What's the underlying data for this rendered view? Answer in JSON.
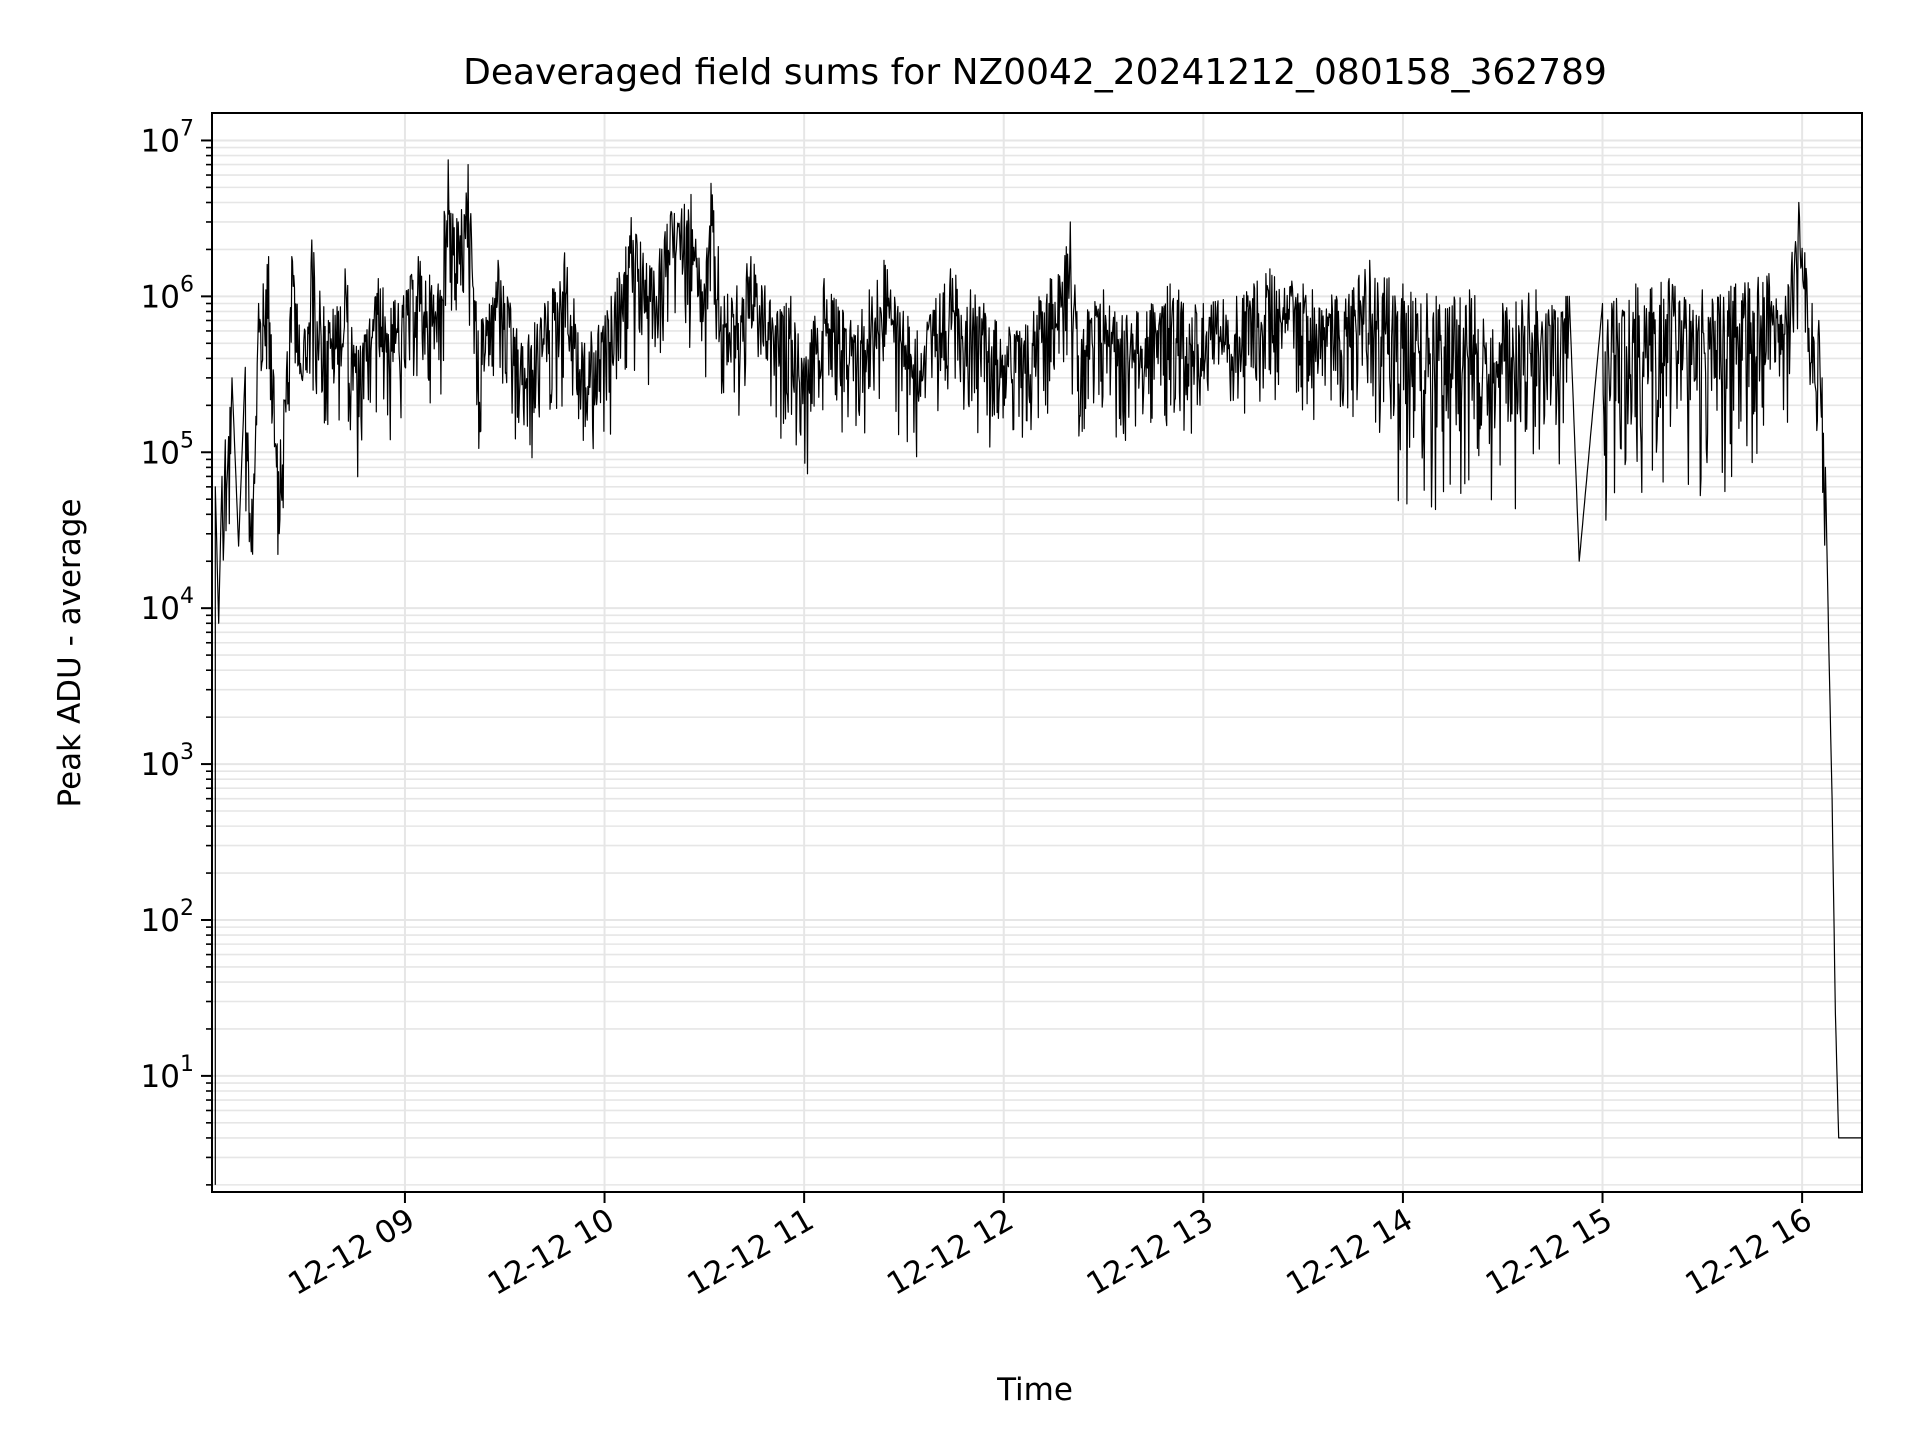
{
  "chart_data": {
    "type": "line",
    "title": "Deaveraged field sums for NZ0042_20241212_080158_362789",
    "xlabel": "Time",
    "ylabel": "Peak ADU - average",
    "yscale": "log",
    "ylim": [
      1.8,
      15000000
    ],
    "xlim": [
      "2024-12-12 08:02",
      "2024-12-12 16:18"
    ],
    "grid": true,
    "line_color": "#000000",
    "grid_color": "#e6e6e6",
    "x_ticks": [
      "12-12 09",
      "12-12 10",
      "12-12 11",
      "12-12 12",
      "12-12 13",
      "12-12 14",
      "12-12 15",
      "12-12 16"
    ],
    "y_ticks": [
      {
        "value": 10,
        "base": "10",
        "exp": "1"
      },
      {
        "value": 100,
        "base": "10",
        "exp": "2"
      },
      {
        "value": 1000,
        "base": "10",
        "exp": "3"
      },
      {
        "value": 10000,
        "base": "10",
        "exp": "4"
      },
      {
        "value": 100000,
        "base": "10",
        "exp": "5"
      },
      {
        "value": 1000000,
        "base": "10",
        "exp": "6"
      },
      {
        "value": 10000000,
        "base": "10",
        "exp": "7"
      }
    ],
    "series": [
      {
        "x": [
          "2024-12-12 08:03",
          "2024-12-12 08:03",
          "2024-12-12 08:04",
          "2024-12-12 08:05",
          "2024-12-12 08:06",
          "2024-12-12 08:08",
          "2024-12-12 08:10",
          "2024-12-12 08:12",
          "2024-12-12 08:14",
          "2024-12-12 08:16",
          "2024-12-12 08:19",
          "2024-12-12 08:22",
          "2024-12-12 08:26",
          "2024-12-12 08:30",
          "2024-12-12 08:32",
          "2024-12-12 08:37",
          "2024-12-12 08:42",
          "2024-12-12 08:46",
          "2024-12-12 08:52",
          "2024-12-12 08:58",
          "2024-12-12 09:04",
          "2024-12-12 09:10",
          "2024-12-12 09:13",
          "2024-12-12 09:16",
          "2024-12-12 09:19",
          "2024-12-12 09:22",
          "2024-12-12 09:28",
          "2024-12-12 09:35",
          "2024-12-12 09:42",
          "2024-12-12 09:48",
          "2024-12-12 09:54",
          "2024-12-12 10:02",
          "2024-12-12 10:08",
          "2024-12-12 10:14",
          "2024-12-12 10:20",
          "2024-12-12 10:26",
          "2024-12-12 10:30",
          "2024-12-12 10:32",
          "2024-12-12 10:36",
          "2024-12-12 10:44",
          "2024-12-12 10:52",
          "2024-12-12 10:56",
          "2024-12-12 11:00",
          "2024-12-12 11:06",
          "2024-12-12 11:14",
          "2024-12-12 11:24",
          "2024-12-12 11:34",
          "2024-12-12 11:44",
          "2024-12-12 11:54",
          "2024-12-12 12:04",
          "2024-12-12 12:14",
          "2024-12-12 12:20",
          "2024-12-12 12:22",
          "2024-12-12 12:30",
          "2024-12-12 12:40",
          "2024-12-12 12:50",
          "2024-12-12 13:00",
          "2024-12-12 13:10",
          "2024-12-12 13:20",
          "2024-12-12 13:30",
          "2024-12-12 13:40",
          "2024-12-12 13:50",
          "2024-12-12 14:00",
          "2024-12-12 14:10",
          "2024-12-12 14:20",
          "2024-12-12 14:30",
          "2024-12-12 14:40",
          "2024-12-12 14:50",
          "2024-12-12 14:53",
          "2024-12-12 15:00",
          "2024-12-12 15:10",
          "2024-12-12 15:20",
          "2024-12-12 15:30",
          "2024-12-12 15:40",
          "2024-12-12 15:50",
          "2024-12-12 15:55",
          "2024-12-12 15:59",
          "2024-12-12 16:03",
          "2024-12-12 16:05",
          "2024-12-12 16:06",
          "2024-12-12 16:07",
          "2024-12-12 16:08",
          "2024-12-12 16:09",
          "2024-12-12 16:10",
          "2024-12-12 16:11",
          "2024-12-12 16:12",
          "2024-12-12 16:13",
          "2024-12-12 16:14",
          "2024-12-12 16:15",
          "2024-12-12 16:16",
          "2024-12-12 16:17",
          "2024-12-12 16:18"
        ],
        "y": [
          2,
          60000,
          8000,
          70000,
          120000,
          300000,
          25000,
          350000,
          50000,
          900000,
          1800000,
          75000,
          1800000,
          600000,
          2300000,
          700000,
          1500000,
          450000,
          1300000,
          900000,
          1800000,
          1200000,
          7500000,
          3000000,
          7000000,
          600000,
          1700000,
          500000,
          900000,
          1900000,
          500000,
          1000000,
          3200000,
          1500000,
          3500000,
          4500000,
          1200000,
          5300000,
          1000000,
          1800000,
          800000,
          1000000,
          400000,
          1300000,
          700000,
          1700000,
          600000,
          1500000,
          900000,
          600000,
          1300000,
          3000000,
          800000,
          1100000,
          800000,
          1200000,
          900000,
          1000000,
          1500000,
          1200000,
          1000000,
          1700000,
          1200000,
          1000000,
          1100000,
          900000,
          1100000,
          1000000,
          20000,
          900000,
          1200000,
          1300000,
          1100000,
          1200000,
          1400000,
          1000000,
          4000000,
          900000,
          700000,
          300000,
          80000,
          6000,
          600,
          25,
          4,
          4,
          4,
          4,
          4,
          4,
          4,
          4
        ]
      }
    ]
  }
}
